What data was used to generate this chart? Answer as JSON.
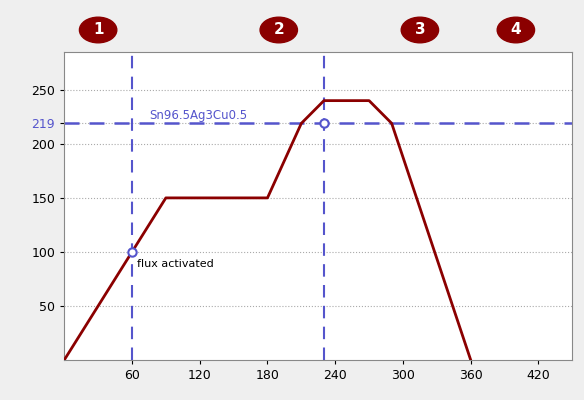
{
  "profile_x": [
    0,
    60,
    90,
    180,
    210,
    230,
    270,
    290,
    360
  ],
  "profile_y": [
    0,
    100,
    150,
    150,
    219,
    240,
    240,
    219,
    0
  ],
  "profile_color": "#8B0000",
  "profile_linewidth": 2.0,
  "melting_point": 219,
  "melting_label": "Sn96.5Ag3Cu0.5",
  "melting_line_color": "#5555CC",
  "melting_label_color": "#5555CC",
  "vline1_x": 60,
  "vline2_x": 230,
  "vline_color": "#5555CC",
  "marker1_x": 60,
  "marker1_y": 100,
  "marker1_label": "flux activated",
  "marker2_x": 230,
  "marker2_y": 219,
  "phase_labels": [
    "1",
    "2",
    "3",
    "4"
  ],
  "phase_data_x": [
    30,
    190,
    315,
    400
  ],
  "phase_label_bg": "#8B0000",
  "phase_label_fontcolor": "white",
  "xlim": [
    0,
    450
  ],
  "ylim": [
    0,
    285
  ],
  "xticks": [
    60,
    120,
    180,
    240,
    300,
    360,
    420
  ],
  "yticks": [
    50,
    100,
    150,
    200,
    219,
    250
  ],
  "ytick_labels": [
    "50",
    "100",
    "150",
    "200",
    "219",
    "250"
  ],
  "grid_color": "#AAAAAA",
  "plot_bg_color": "#FFFFFF",
  "fig_bg_color": "#EFEFEF",
  "fig_width": 5.84,
  "fig_height": 4.0,
  "dpi": 100
}
